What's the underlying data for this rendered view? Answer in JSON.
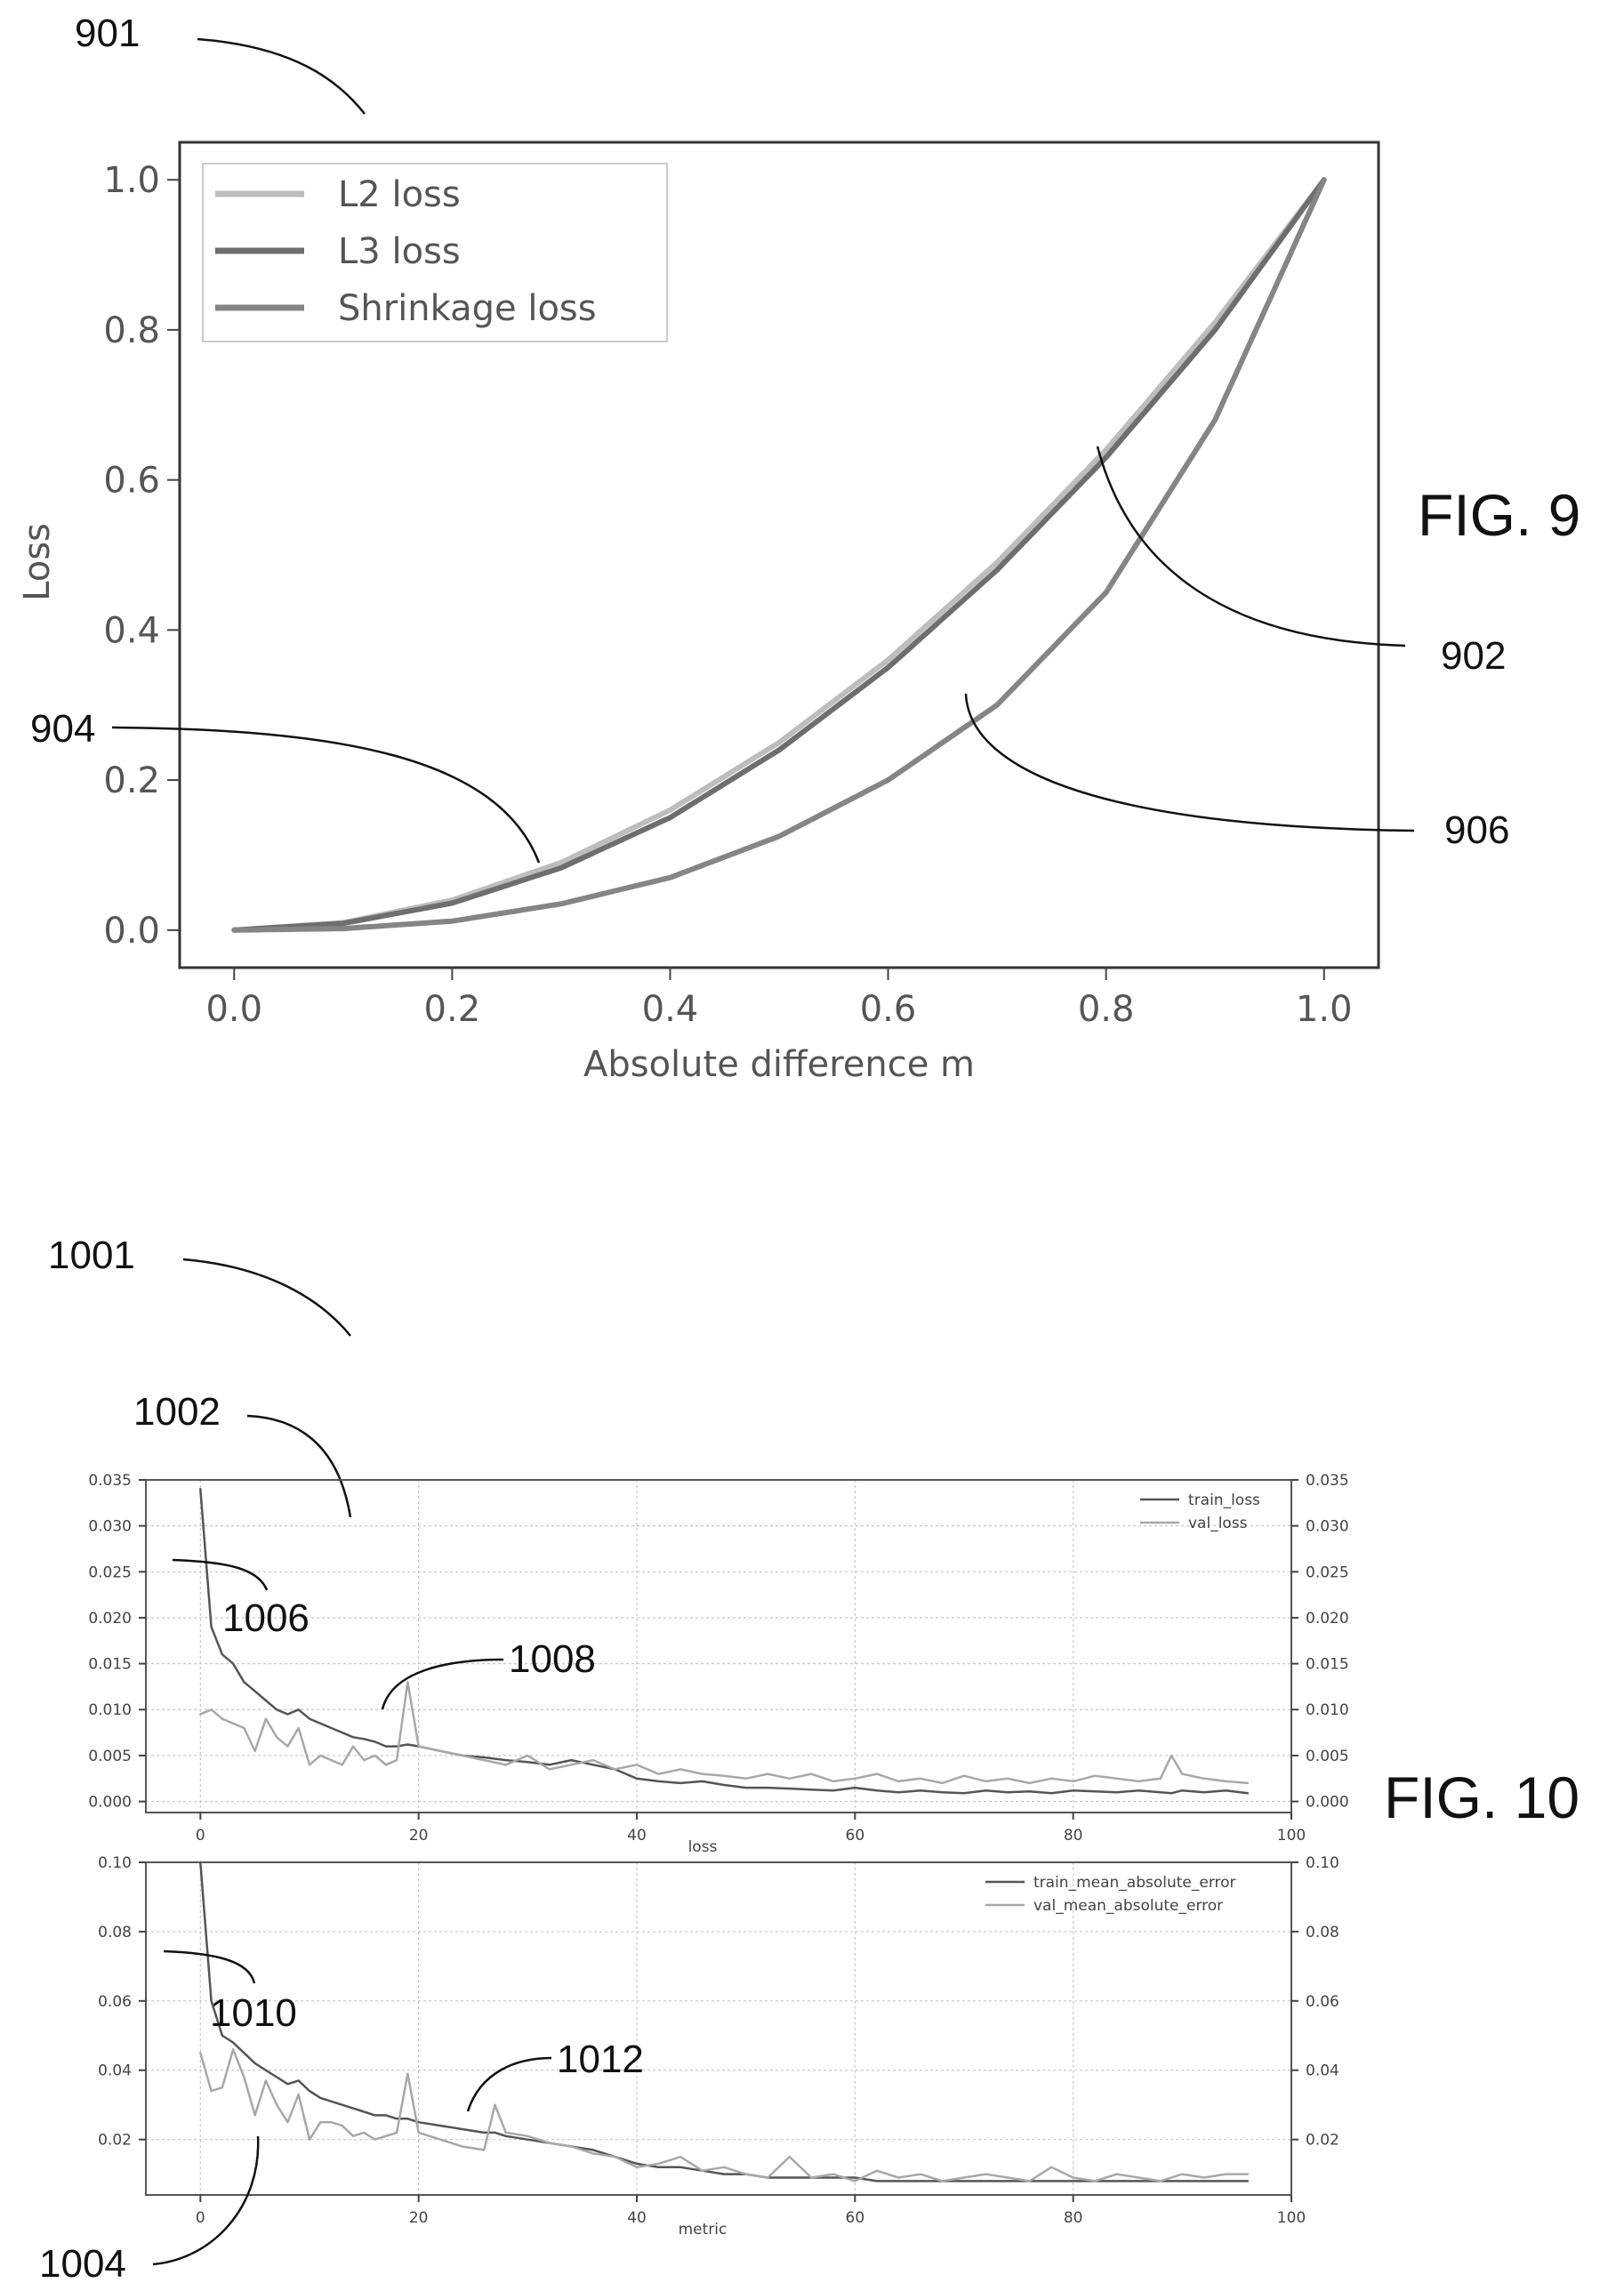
{
  "labels": {
    "fig9": "FIG. 9",
    "fig10": "FIG. 10",
    "r901": "901",
    "r902": "902",
    "r904": "904",
    "r906": "906",
    "r1001": "1001",
    "r1002": "1002",
    "r1004": "1004",
    "r1006": "1006",
    "r1008": "1008",
    "r1010": "1010",
    "r1012": "1012"
  },
  "chart_data": [
    {
      "id": "fig9",
      "type": "line",
      "xlabel": "Absolute difference m",
      "ylabel": "Loss",
      "xlim": [
        -0.05,
        1.05
      ],
      "ylim": [
        -0.05,
        1.05
      ],
      "xticks": [
        "0.0",
        "0.2",
        "0.4",
        "0.6",
        "0.8",
        "1.0"
      ],
      "yticks": [
        "0.0",
        "0.2",
        "0.4",
        "0.6",
        "0.8",
        "1.0"
      ],
      "grid": false,
      "legend": "top-left",
      "x": [
        0,
        0.1,
        0.2,
        0.3,
        0.4,
        0.5,
        0.6,
        0.7,
        0.8,
        0.9,
        1.0
      ],
      "series": [
        {
          "name": "L2 loss",
          "color": "#bdbdbd",
          "values": [
            0,
            0.01,
            0.04,
            0.09,
            0.16,
            0.25,
            0.36,
            0.49,
            0.64,
            0.81,
            1.0
          ]
        },
        {
          "name": "L3 loss",
          "color": "#6e6e6e",
          "values": [
            0,
            0.009,
            0.036,
            0.083,
            0.15,
            0.24,
            0.35,
            0.48,
            0.63,
            0.8,
            1.0
          ]
        },
        {
          "name": "Shrinkage loss",
          "color": "#858585",
          "values": [
            0,
            0.002,
            0.012,
            0.035,
            0.07,
            0.125,
            0.2,
            0.3,
            0.45,
            0.68,
            1.0
          ]
        }
      ]
    },
    {
      "id": "fig10-loss",
      "type": "line",
      "xlabel": "loss",
      "xlim": [
        -5,
        100
      ],
      "ylim": [
        -0.0012,
        0.035
      ],
      "xticks": [
        "0",
        "20",
        "40",
        "60",
        "80",
        "100"
      ],
      "yticks": [
        "0.000",
        "0.005",
        "0.010",
        "0.015",
        "0.020",
        "0.025",
        "0.030",
        "0.035"
      ],
      "grid": true,
      "legend": "top-right",
      "x": [
        0,
        1,
        2,
        3,
        4,
        5,
        6,
        7,
        8,
        9,
        10,
        11,
        12,
        13,
        14,
        15,
        16,
        17,
        18,
        19,
        20,
        22,
        24,
        26,
        28,
        30,
        32,
        34,
        36,
        38,
        40,
        42,
        44,
        46,
        48,
        50,
        52,
        54,
        56,
        58,
        60,
        62,
        64,
        66,
        68,
        70,
        72,
        74,
        76,
        78,
        80,
        82,
        84,
        86,
        88,
        89,
        90,
        92,
        94,
        96
      ],
      "series": [
        {
          "name": "train_loss",
          "color": "#555555",
          "values": [
            0.034,
            0.019,
            0.016,
            0.015,
            0.013,
            0.012,
            0.011,
            0.01,
            0.0095,
            0.01,
            0.009,
            0.0085,
            0.008,
            0.0075,
            0.007,
            0.0068,
            0.0065,
            0.006,
            0.006,
            0.0062,
            0.006,
            0.0055,
            0.005,
            0.0048,
            0.0045,
            0.0043,
            0.004,
            0.0045,
            0.004,
            0.0035,
            0.0025,
            0.0022,
            0.002,
            0.0022,
            0.0018,
            0.0015,
            0.0015,
            0.0014,
            0.0013,
            0.0012,
            0.0015,
            0.0012,
            0.001,
            0.0012,
            0.001,
            0.0009,
            0.0012,
            0.001,
            0.0011,
            0.0009,
            0.0012,
            0.0011,
            0.001,
            0.0012,
            0.001,
            0.0009,
            0.0012,
            0.001,
            0.0012,
            0.0009
          ]
        },
        {
          "name": "val_loss",
          "color": "#a8a8a8",
          "values": [
            0.0095,
            0.01,
            0.009,
            0.0085,
            0.008,
            0.0055,
            0.009,
            0.007,
            0.006,
            0.008,
            0.004,
            0.005,
            0.0045,
            0.004,
            0.006,
            0.0045,
            0.005,
            0.004,
            0.0045,
            0.013,
            0.006,
            0.0055,
            0.005,
            0.0045,
            0.004,
            0.005,
            0.0035,
            0.004,
            0.0045,
            0.0035,
            0.004,
            0.003,
            0.0035,
            0.003,
            0.0028,
            0.0025,
            0.003,
            0.0025,
            0.003,
            0.0022,
            0.0025,
            0.003,
            0.0022,
            0.0025,
            0.002,
            0.0028,
            0.0022,
            0.0025,
            0.002,
            0.0025,
            0.0022,
            0.0028,
            0.0025,
            0.0022,
            0.0025,
            0.005,
            0.003,
            0.0025,
            0.0022,
            0.002
          ]
        }
      ]
    },
    {
      "id": "fig10-metric",
      "type": "line",
      "xlabel": "metric",
      "xlim": [
        -5,
        100
      ],
      "ylim": [
        0.004,
        0.1
      ],
      "xticks": [
        "0",
        "20",
        "40",
        "60",
        "80",
        "100"
      ],
      "yticks": [
        "0.02",
        "0.04",
        "0.06",
        "0.08",
        "0.10"
      ],
      "grid": true,
      "legend": "top-right",
      "x": [
        0,
        1,
        2,
        3,
        4,
        5,
        6,
        7,
        8,
        9,
        10,
        11,
        12,
        13,
        14,
        15,
        16,
        17,
        18,
        19,
        20,
        22,
        24,
        26,
        27,
        28,
        30,
        32,
        34,
        36,
        38,
        40,
        42,
        44,
        46,
        48,
        50,
        52,
        54,
        56,
        58,
        60,
        62,
        64,
        66,
        68,
        70,
        72,
        74,
        76,
        78,
        80,
        82,
        84,
        86,
        88,
        90,
        92,
        94,
        96
      ],
      "series": [
        {
          "name": "train_mean_absolute_error",
          "color": "#555555",
          "values": [
            0.1,
            0.06,
            0.05,
            0.048,
            0.045,
            0.042,
            0.04,
            0.038,
            0.036,
            0.037,
            0.034,
            0.032,
            0.031,
            0.03,
            0.029,
            0.028,
            0.027,
            0.027,
            0.026,
            0.026,
            0.025,
            0.024,
            0.023,
            0.022,
            0.022,
            0.021,
            0.02,
            0.019,
            0.018,
            0.017,
            0.015,
            0.013,
            0.012,
            0.012,
            0.011,
            0.01,
            0.01,
            0.009,
            0.009,
            0.009,
            0.009,
            0.009,
            0.008,
            0.008,
            0.008,
            0.008,
            0.008,
            0.008,
            0.008,
            0.008,
            0.008,
            0.008,
            0.008,
            0.008,
            0.008,
            0.008,
            0.008,
            0.008,
            0.008,
            0.008
          ]
        },
        {
          "name": "val_mean_absolute_error",
          "color": "#a8a8a8",
          "values": [
            0.045,
            0.034,
            0.035,
            0.046,
            0.038,
            0.027,
            0.037,
            0.03,
            0.025,
            0.033,
            0.02,
            0.025,
            0.025,
            0.024,
            0.021,
            0.022,
            0.02,
            0.021,
            0.022,
            0.039,
            0.022,
            0.02,
            0.018,
            0.017,
            0.03,
            0.022,
            0.021,
            0.019,
            0.018,
            0.016,
            0.015,
            0.012,
            0.013,
            0.015,
            0.011,
            0.012,
            0.01,
            0.009,
            0.015,
            0.009,
            0.01,
            0.008,
            0.011,
            0.009,
            0.01,
            0.008,
            0.009,
            0.01,
            0.009,
            0.008,
            0.012,
            0.009,
            0.008,
            0.01,
            0.009,
            0.008,
            0.01,
            0.009,
            0.01,
            0.01
          ]
        }
      ]
    }
  ]
}
